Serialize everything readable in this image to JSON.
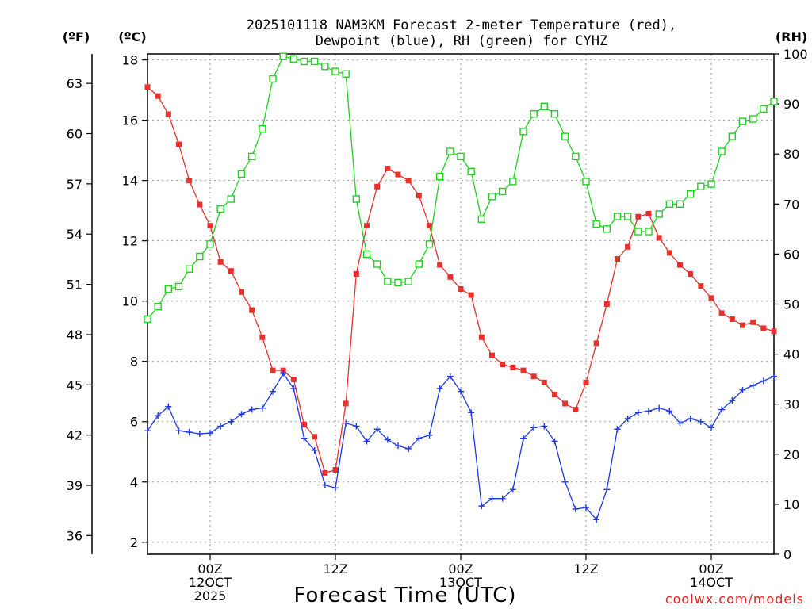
{
  "chart_data": {
    "type": "line",
    "title_line1": "2025101118 NAM3KM Forecast 2-meter Temperature (red),",
    "title_line2": "Dewpoint (blue), RH (green) for CYHZ",
    "xlabel": "Forecast Time (UTC)",
    "credit": "coolwx.com/models",
    "units": {
      "fahrenheit": "(ºF)",
      "celsius": "(ºC)",
      "rh": "(RH)"
    },
    "x_unit": "hours since 2025-10-11 18Z",
    "x_range": [
      0,
      60
    ],
    "x_ticks": [
      {
        "x": 6,
        "lines": [
          "00Z",
          "12OCT",
          "2025"
        ]
      },
      {
        "x": 18,
        "lines": [
          "12Z"
        ]
      },
      {
        "x": 30,
        "lines": [
          "00Z",
          "13OCT"
        ]
      },
      {
        "x": 42,
        "lines": [
          "12Z"
        ]
      },
      {
        "x": 54,
        "lines": [
          "00Z",
          "14OCT"
        ]
      }
    ],
    "y_celsius_range": [
      1.6,
      18.2
    ],
    "y_celsius_ticks": [
      "2",
      "4",
      "6",
      "8",
      "10",
      "12",
      "14",
      "16",
      "18"
    ],
    "y_fahrenheit_ticks": [
      "36",
      "39",
      "42",
      "45",
      "48",
      "51",
      "54",
      "57",
      "60",
      "63"
    ],
    "y_rh_range": [
      0,
      100
    ],
    "y_rh_ticks": [
      "0",
      "10",
      "20",
      "30",
      "40",
      "50",
      "60",
      "70",
      "80",
      "90",
      "100"
    ],
    "colors": {
      "temperature": "#e8312d",
      "dewpoint": "#1f39e6",
      "rh": "#1fd21f",
      "credit": "#e0221f"
    },
    "series": [
      {
        "name": "Temperature",
        "unit": "C",
        "color": "#e8312d",
        "marker": "square-filled",
        "values": [
          17.1,
          16.8,
          16.2,
          15.2,
          14.0,
          13.2,
          12.5,
          11.3,
          11.0,
          10.3,
          9.7,
          8.8,
          7.7,
          7.7,
          7.4,
          5.9,
          5.5,
          4.3,
          4.4,
          6.6,
          10.9,
          12.5,
          13.8,
          14.4,
          14.2,
          14.0,
          13.5,
          12.5,
          11.2,
          10.8,
          10.4,
          10.2,
          8.8,
          8.2,
          7.9,
          7.8,
          7.7,
          7.5,
          7.3,
          6.9,
          6.6,
          6.4,
          7.3,
          8.6,
          9.9,
          11.4,
          11.8,
          12.8,
          12.9,
          12.1,
          11.6,
          11.2,
          10.9,
          10.5,
          10.1,
          9.6,
          9.4,
          9.2,
          9.3,
          9.1,
          9.0
        ]
      },
      {
        "name": "Dewpoint",
        "unit": "C",
        "color": "#1f39e6",
        "marker": "plus",
        "values": [
          5.7,
          6.2,
          6.5,
          5.7,
          5.65,
          5.6,
          5.62,
          5.85,
          6.0,
          6.25,
          6.4,
          6.45,
          7.0,
          7.6,
          7.1,
          5.45,
          5.05,
          3.9,
          3.8,
          5.95,
          5.85,
          5.35,
          5.75,
          5.4,
          5.2,
          5.1,
          5.45,
          5.55,
          7.1,
          7.5,
          7.0,
          6.3,
          3.2,
          3.45,
          3.45,
          3.75,
          5.45,
          5.8,
          5.85,
          5.35,
          4.0,
          3.1,
          3.15,
          2.75,
          3.75,
          5.75,
          6.1,
          6.3,
          6.35,
          6.45,
          6.35,
          5.95,
          6.1,
          6.0,
          5.8,
          6.4,
          6.7,
          7.05,
          7.2,
          7.35,
          7.5
        ]
      },
      {
        "name": "RH",
        "unit": "%",
        "color": "#1fd21f",
        "marker": "square-open",
        "values": [
          47,
          49.5,
          53,
          53.5,
          57,
          59.5,
          62,
          69,
          71,
          76,
          79.5,
          85,
          95,
          99.5,
          99,
          98.5,
          98.5,
          97.5,
          96.5,
          96,
          71,
          60,
          58,
          54.5,
          54.3,
          54.5,
          58,
          62,
          75.5,
          80.5,
          79.5,
          76.5,
          67,
          71.5,
          72.5,
          74.5,
          84.5,
          88,
          89.5,
          88,
          83.5,
          79.5,
          74.5,
          66,
          65,
          67.5,
          67.5,
          64.5,
          64.5,
          68,
          70,
          70,
          72,
          73.5,
          74,
          80.5,
          83.5,
          86.5,
          87,
          89,
          90.5
        ]
      }
    ]
  }
}
